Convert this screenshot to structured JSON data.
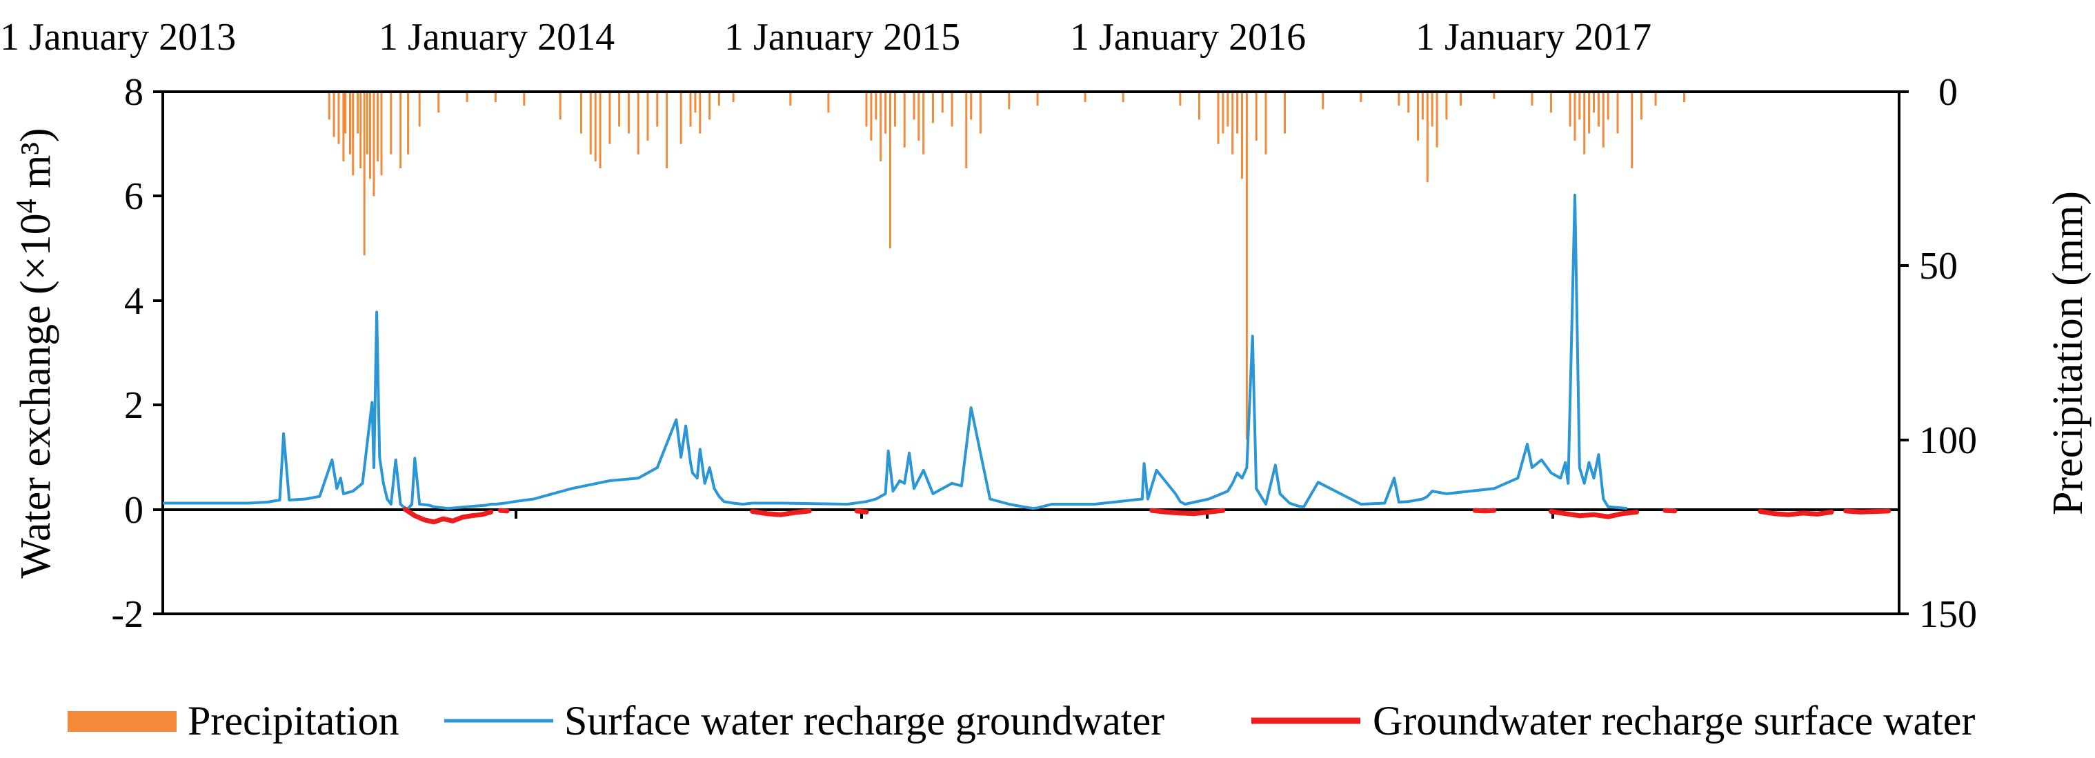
{
  "chart_data": {
    "type": "line",
    "title": "",
    "date_labels": [
      "1 January 2013",
      "1 January 2014",
      "1 January 2015",
      "1 January 2016",
      "1 January 2017"
    ],
    "x_range_days": [
      0,
      1826
    ],
    "y_left": {
      "label_main": "Water exchange (×10",
      "label_sup": "4",
      "label_tail": " m³)",
      "range": [
        -2,
        8
      ],
      "ticks": [
        8,
        6,
        4,
        2,
        0,
        -2
      ],
      "tick_labels": [
        "8",
        "6",
        "4",
        "2",
        "0",
        "-2"
      ]
    },
    "y_right": {
      "label": "Precipitation (mm)",
      "range": [
        0,
        150
      ],
      "inverted": true,
      "ticks": [
        0,
        50,
        100,
        150
      ],
      "tick_labels": [
        "0",
        "50",
        "100",
        "150"
      ]
    },
    "series": [
      {
        "name": "Precipitation",
        "kind": "bar",
        "axis": "right",
        "unit": "mm",
        "x_day": [
          175,
          180,
          185,
          190,
          192,
          197,
          200,
          205,
          208,
          212,
          215,
          218,
          222,
          226,
          230,
          240,
          250,
          258,
          270,
          290,
          320,
          350,
          380,
          418,
          440,
          450,
          455,
          460,
          470,
          480,
          490,
          500,
          510,
          520,
          530,
          545,
          555,
          560,
          565,
          575,
          585,
          600,
          660,
          700,
          740,
          745,
          750,
          755,
          760,
          765,
          770,
          780,
          790,
          795,
          800,
          810,
          820,
          830,
          845,
          850,
          860,
          890,
          920,
          970,
          1010,
          1070,
          1090,
          1110,
          1115,
          1120,
          1125,
          1130,
          1135,
          1140,
          1150,
          1160,
          1180,
          1220,
          1260,
          1300,
          1310,
          1320,
          1325,
          1330,
          1335,
          1340,
          1350,
          1365,
          1400,
          1440,
          1460,
          1480,
          1485,
          1490,
          1495,
          1500,
          1505,
          1510,
          1515,
          1520,
          1530,
          1545,
          1555,
          1570,
          1600
        ],
        "values": [
          8,
          13,
          15,
          20,
          12,
          18,
          24,
          12,
          22,
          47,
          18,
          25,
          30,
          20,
          24,
          18,
          22,
          18,
          10,
          6,
          3,
          3,
          4,
          8,
          12,
          18,
          20,
          22,
          15,
          10,
          12,
          18,
          14,
          10,
          22,
          15,
          10,
          6,
          12,
          8,
          4,
          3,
          4,
          6,
          10,
          14,
          8,
          20,
          12,
          45,
          10,
          16,
          8,
          14,
          18,
          9,
          6,
          10,
          22,
          8,
          12,
          5,
          4,
          3,
          3,
          4,
          8,
          15,
          12,
          10,
          18,
          12,
          25,
          100,
          14,
          18,
          12,
          5,
          3,
          4,
          6,
          14,
          8,
          26,
          10,
          16,
          8,
          4,
          2,
          4,
          6,
          10,
          14,
          8,
          18,
          12,
          6,
          10,
          16,
          8,
          12,
          22,
          8,
          4,
          3
        ]
      },
      {
        "name": "Surface water recharge groundwater",
        "kind": "line",
        "axis": "left",
        "x_day": [
          0,
          90,
          110,
          123,
          127,
          133,
          150,
          165,
          178,
          183,
          187,
          190,
          200,
          210,
          220,
          222,
          225,
          228,
          232,
          236,
          240,
          245,
          250,
          253,
          256,
          258,
          262,
          265,
          270,
          280,
          285,
          300,
          320,
          340,
          345,
          350,
          360,
          370,
          390,
          400,
          430,
          470,
          500,
          520,
          540,
          545,
          550,
          555,
          557,
          562,
          565,
          570,
          575,
          580,
          585,
          590,
          600,
          610,
          620,
          650,
          720,
          740,
          750,
          760,
          763,
          768,
          775,
          780,
          785,
          790,
          800,
          810,
          820,
          830,
          840,
          850,
          870,
          890,
          905,
          915,
          920,
          935,
          950,
          980,
          1030,
          1032,
          1036,
          1045,
          1065,
          1070,
          1075,
          1100,
          1120,
          1125,
          1130,
          1135,
          1140,
          1146,
          1150,
          1155,
          1160,
          1170,
          1175,
          1185,
          1195,
          1200,
          1215,
          1260,
          1285,
          1295,
          1300,
          1310,
          1325,
          1330,
          1335,
          1350,
          1400,
          1425,
          1435,
          1440,
          1450,
          1460,
          1470,
          1475,
          1478,
          1485,
          1490,
          1495,
          1500,
          1505,
          1510,
          1515,
          1520,
          1540
        ],
        "values": [
          0.12,
          0.12,
          0.14,
          0.18,
          1.45,
          0.18,
          0.2,
          0.25,
          0.95,
          0.4,
          0.6,
          0.3,
          0.35,
          0.5,
          2.05,
          0.8,
          3.78,
          1.0,
          0.5,
          0.2,
          0.1,
          0.95,
          0.1,
          0.05,
          0.02,
          0.02,
          0.1,
          0.98,
          0.1,
          0.08,
          0.05,
          0.02,
          0.05,
          0.08,
          0.1,
          0.1,
          0.12,
          0.15,
          0.2,
          0.25,
          0.4,
          0.55,
          0.6,
          0.8,
          1.72,
          1.0,
          1.6,
          0.9,
          0.7,
          0.6,
          1.15,
          0.5,
          0.8,
          0.4,
          0.25,
          0.15,
          0.12,
          0.1,
          0.12,
          0.12,
          0.1,
          0.15,
          0.2,
          0.3,
          1.12,
          0.35,
          0.55,
          0.5,
          1.08,
          0.4,
          0.75,
          0.3,
          0.4,
          0.5,
          0.45,
          1.95,
          0.2,
          0.1,
          0.05,
          0.02,
          0.03,
          0.1,
          0.1,
          0.1,
          0.2,
          0.88,
          0.2,
          0.75,
          0.3,
          0.15,
          0.1,
          0.2,
          0.35,
          0.5,
          0.7,
          0.6,
          0.8,
          3.32,
          0.4,
          0.25,
          0.1,
          0.85,
          0.3,
          0.12,
          0.06,
          0.05,
          0.52,
          0.1,
          0.12,
          0.6,
          0.14,
          0.15,
          0.2,
          0.25,
          0.35,
          0.3,
          0.4,
          0.6,
          1.25,
          0.8,
          0.95,
          0.7,
          0.6,
          0.9,
          0.5,
          6.02,
          0.8,
          0.5,
          0.9,
          0.6,
          1.05,
          0.2,
          0.05,
          0.02
        ]
      },
      {
        "name": "Groundwater recharge surface water",
        "kind": "line",
        "axis": "left",
        "segments": [
          {
            "x_day": [
              255,
              265,
              275,
              285,
              295,
              305,
              315,
              325,
              335,
              345
            ],
            "values": [
              0,
              -0.12,
              -0.2,
              -0.24,
              -0.18,
              -0.22,
              -0.15,
              -0.12,
              -0.1,
              -0.05
            ]
          },
          {
            "x_day": [
              355,
              362
            ],
            "values": [
              -0.02,
              -0.03
            ]
          },
          {
            "x_day": [
              620,
              635,
              650,
              665,
              680
            ],
            "values": [
              -0.04,
              -0.08,
              -0.1,
              -0.06,
              -0.03
            ]
          },
          {
            "x_day": [
              730,
              740
            ],
            "values": [
              -0.03,
              -0.05
            ]
          },
          {
            "x_day": [
              1040,
              1055,
              1070,
              1085,
              1100,
              1115
            ],
            "values": [
              -0.02,
              -0.05,
              -0.07,
              -0.08,
              -0.05,
              -0.02
            ]
          },
          {
            "x_day": [
              1380,
              1390,
              1400
            ],
            "values": [
              -0.02,
              -0.03,
              -0.02
            ]
          },
          {
            "x_day": [
              1460,
              1475,
              1490,
              1505,
              1520,
              1535,
              1550
            ],
            "values": [
              -0.04,
              -0.08,
              -0.12,
              -0.1,
              -0.14,
              -0.08,
              -0.05
            ]
          },
          {
            "x_day": [
              1580,
              1590
            ],
            "values": [
              -0.02,
              -0.03
            ]
          },
          {
            "x_day": [
              1680,
              1695,
              1710,
              1725,
              1740,
              1755
            ],
            "values": [
              -0.04,
              -0.08,
              -0.1,
              -0.07,
              -0.09,
              -0.05
            ]
          },
          {
            "x_day": [
              1770,
              1785,
              1800,
              1815
            ],
            "values": [
              -0.03,
              -0.05,
              -0.04,
              -0.03
            ]
          }
        ]
      }
    ],
    "legend": {
      "position": "bottom",
      "items": [
        {
          "label": "Precipitation",
          "symbol": "bar"
        },
        {
          "label": "Surface water recharge groundwater",
          "symbol": "line"
        },
        {
          "label": "Groundwater recharge surface water",
          "symbol": "line"
        }
      ]
    },
    "colors": {
      "precipitation": "#f28a3a",
      "surface": "#2a96d6",
      "groundwater": "#ee1c1c",
      "axis": "#000000"
    }
  }
}
